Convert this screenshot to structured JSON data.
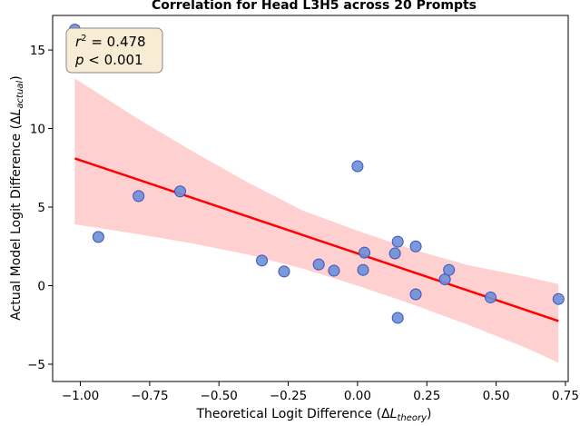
{
  "chart_data": {
    "type": "scatter",
    "title": "Correlation for Head L3H5 across 20 Prompts",
    "xlabel": {
      "main": "Theoretical Logit Difference (Δ",
      "var": "L",
      "sub": "theory",
      "close": ")"
    },
    "ylabel": {
      "main": "Actual Model Logit Difference (Δ",
      "var": "L",
      "sub": "actual",
      "close": ")"
    },
    "xlim": [
      -1.1,
      0.76
    ],
    "ylim": [
      -6.1,
      17.2
    ],
    "x_ticks": [
      -1.0,
      -0.75,
      -0.5,
      -0.25,
      0.0,
      0.25,
      0.5,
      0.75
    ],
    "x_tick_labels": [
      "−1.00",
      "−0.75",
      "−0.50",
      "−0.25",
      "0.00",
      "0.25",
      "0.50",
      "0.75"
    ],
    "y_ticks": [
      -5,
      0,
      5,
      10,
      15
    ],
    "y_tick_labels": [
      "−5",
      "0",
      "5",
      "10",
      "15"
    ],
    "points": [
      {
        "x": -1.02,
        "y": 16.3
      },
      {
        "x": -0.935,
        "y": 3.1
      },
      {
        "x": -0.79,
        "y": 5.7
      },
      {
        "x": -0.64,
        "y": 6.0
      },
      {
        "x": -0.345,
        "y": 1.6
      },
      {
        "x": -0.265,
        "y": 0.9
      },
      {
        "x": -0.14,
        "y": 1.35
      },
      {
        "x": -0.085,
        "y": 0.95
      },
      {
        "x": 0.0,
        "y": 7.6
      },
      {
        "x": 0.02,
        "y": 1.0
      },
      {
        "x": 0.025,
        "y": 2.1
      },
      {
        "x": 0.135,
        "y": 2.05
      },
      {
        "x": 0.145,
        "y": 2.8
      },
      {
        "x": 0.145,
        "y": -2.05
      },
      {
        "x": 0.21,
        "y": 2.5
      },
      {
        "x": 0.21,
        "y": -0.55
      },
      {
        "x": 0.315,
        "y": 0.4
      },
      {
        "x": 0.33,
        "y": 1.0
      },
      {
        "x": 0.48,
        "y": -0.75
      },
      {
        "x": 0.725,
        "y": -0.85
      }
    ],
    "regression": {
      "x": [
        -1.02,
        0.725
      ],
      "y": [
        8.1,
        -2.25
      ]
    },
    "confidence_band": {
      "x": [
        -1.02,
        -0.8,
        -0.6,
        -0.4,
        -0.2,
        0.0,
        0.2,
        0.4,
        0.6,
        0.725
      ],
      "upper": [
        13.2,
        10.7,
        8.6,
        6.6,
        4.8,
        3.5,
        2.3,
        1.3,
        0.6,
        0.1
      ],
      "lower": [
        3.9,
        3.3,
        2.7,
        2.0,
        1.1,
        0.0,
        -1.2,
        -2.5,
        -3.9,
        -4.9
      ]
    },
    "stats": {
      "r2_label": "r",
      "r2_power": "2",
      "r2_text": " = 0.478",
      "p_label": "p",
      "p_text": " < 0.001"
    },
    "colors": {
      "point_fill": "#6b8fd6",
      "point_edge": "#3b4fc4",
      "line": "#ff0000",
      "band": "#ffc8c8",
      "stats_box_fill": "#f8ecd4",
      "stats_box_edge": "#888888"
    },
    "grid": false
  }
}
